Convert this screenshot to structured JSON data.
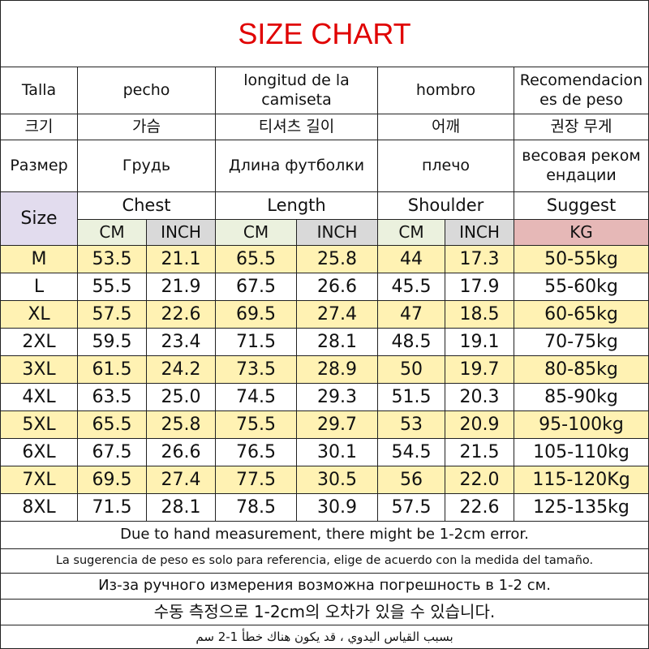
{
  "title": "SIZE CHART",
  "header_rows": [
    [
      "Talla",
      "pecho",
      "longitud de la camiseta",
      "hombro",
      "Recomendaciones de peso"
    ],
    [
      "크기",
      "가슴",
      "티셔츠 길이",
      "어깨",
      "권장 무게"
    ],
    [
      "Размер",
      "Грудь",
      "Длина футболки",
      "плечо",
      "весовая рекомендации"
    ]
  ],
  "table": {
    "size_label": "Size",
    "groups": [
      "Chest",
      "Length",
      "Shoulder",
      "Suggest"
    ],
    "units": [
      "CM",
      "INCH",
      "CM",
      "INCH",
      "CM",
      "INCH",
      "KG"
    ],
    "rows": [
      [
        "M",
        "53.5",
        "21.1",
        "65.5",
        "25.8",
        "44",
        "17.3",
        "50-55kg"
      ],
      [
        "L",
        "55.5",
        "21.9",
        "67.5",
        "26.6",
        "45.5",
        "17.9",
        "55-60kg"
      ],
      [
        "XL",
        "57.5",
        "22.6",
        "69.5",
        "27.4",
        "47",
        "18.5",
        "60-65kg"
      ],
      [
        "2XL",
        "59.5",
        "23.4",
        "71.5",
        "28.1",
        "48.5",
        "19.1",
        "70-75kg"
      ],
      [
        "3XL",
        "61.5",
        "24.2",
        "73.5",
        "28.9",
        "50",
        "19.7",
        "80-85kg"
      ],
      [
        "4XL",
        "63.5",
        "25.0",
        "74.5",
        "29.3",
        "51.5",
        "20.3",
        "85-90kg"
      ],
      [
        "5XL",
        "65.5",
        "25.8",
        "75.5",
        "29.7",
        "53",
        "20.9",
        "95-100kg"
      ],
      [
        "6XL",
        "67.5",
        "26.6",
        "76.5",
        "30.1",
        "54.5",
        "21.5",
        "105-110kg"
      ],
      [
        "7XL",
        "69.5",
        "27.4",
        "77.5",
        "30.5",
        "56",
        "22.0",
        "115-120Kg"
      ],
      [
        "8XL",
        "71.5",
        "28.1",
        "78.5",
        "30.9",
        "57.5",
        "22.6",
        "125-135kg"
      ]
    ]
  },
  "notes": [
    "Due to hand measurement, there might be 1-2cm error.",
    "La sugerencia de peso es solo para referencia, elige de acuerdo con la medida del tamaño.",
    "Из-за ручного измерения возможна погрешность в 1-2 см.",
    "수동 측정으로 1-2cm의 오차가 있을 수 있습니다.",
    "بسبب القياس اليدوي ، قد يكون هناك خطأ 1-2 سم"
  ]
}
